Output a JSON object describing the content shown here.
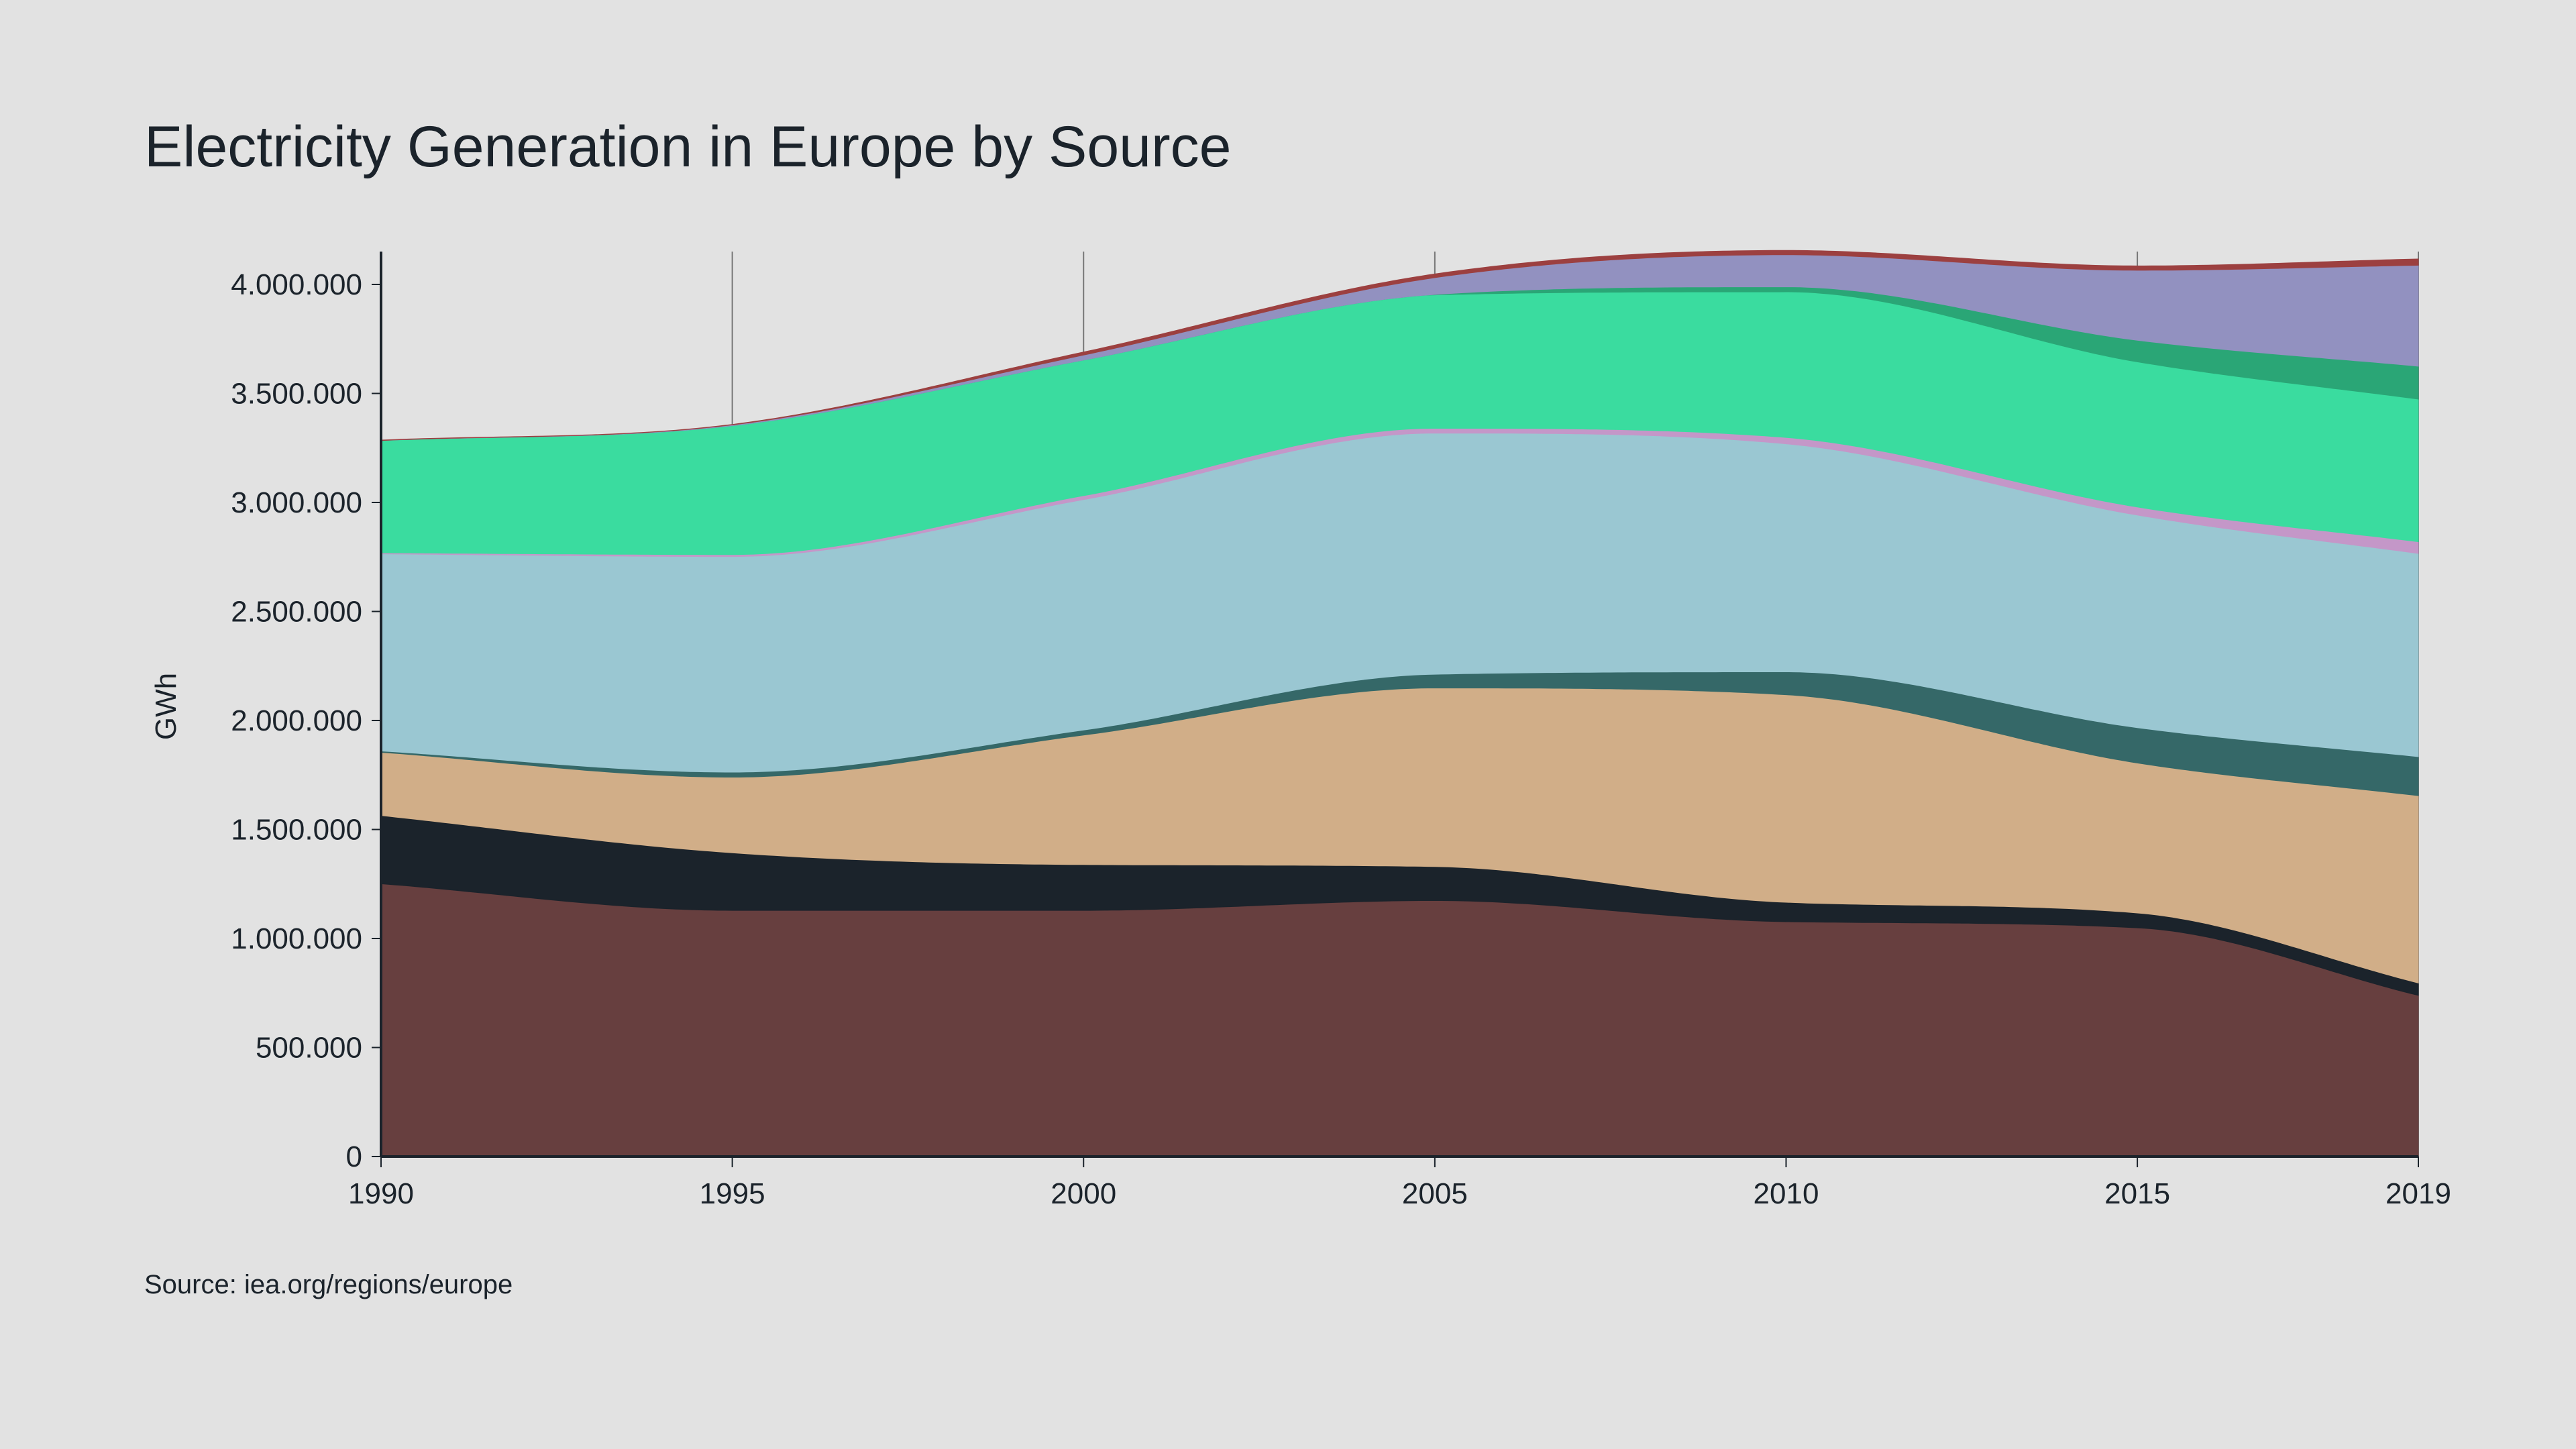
{
  "chart_data": {
    "type": "area",
    "stacked": true,
    "title": "Electricity Generation in Europe by Source",
    "ylabel": "GWh",
    "xlabel": "",
    "source": "Source: iea.org/regions/europe",
    "x": [
      1990,
      1995,
      2000,
      2005,
      2010,
      2015,
      2019
    ],
    "x_tick_labels": [
      "1990",
      "1995",
      "2000",
      "2005",
      "2010",
      "2015",
      "2019"
    ],
    "y_tick_values": [
      0,
      500000,
      1000000,
      1500000,
      2000000,
      2500000,
      3000000,
      3500000,
      4000000
    ],
    "y_tick_labels": [
      "0",
      "500.000",
      "1.000.000",
      "1.500.000",
      "2.000.000",
      "2.500.000",
      "3.000.000",
      "3.500.000",
      "4.000.000"
    ],
    "ylim": [
      0,
      4150000
    ],
    "xlim": [
      1990,
      2019
    ],
    "grid": "vertical lines at x ticks",
    "legend": "none",
    "series": [
      {
        "color": "#673f3f",
        "values": [
          1251000,
          1129000,
          1129000,
          1174000,
          1077000,
          1049000,
          739000
        ]
      },
      {
        "color": "#1b232b",
        "values": [
          313000,
          264000,
          210000,
          156000,
          89000,
          68000,
          57000
        ]
      },
      {
        "color": "#d1ae88",
        "values": [
          290000,
          347000,
          594000,
          819000,
          952000,
          688000,
          859000
        ]
      },
      {
        "color": "#356868",
        "values": [
          6000,
          23000,
          23000,
          63000,
          105000,
          162000,
          179000
        ]
      },
      {
        "color": "#9ac7d2",
        "values": [
          904000,
          989000,
          1057000,
          1106000,
          1046000,
          975000,
          932000
        ]
      },
      {
        "color": "#c497c8",
        "values": [
          5000,
          9000,
          18000,
          22000,
          29000,
          37000,
          54000
        ]
      },
      {
        "color": "#3adc9f",
        "values": [
          515000,
          591000,
          622000,
          612000,
          668000,
          666000,
          654000
        ]
      },
      {
        "color": "#2aa676",
        "values": [
          0,
          0,
          0,
          2000,
          23000,
          99000,
          151000
        ]
      },
      {
        "color": "#9291c0",
        "values": [
          0,
          4000,
          23000,
          77000,
          147000,
          321000,
          463000
        ]
      },
      {
        "color": "#9c4040",
        "values": [
          2000,
          2000,
          14000,
          17000,
          20000,
          20000,
          29000
        ]
      }
    ]
  }
}
